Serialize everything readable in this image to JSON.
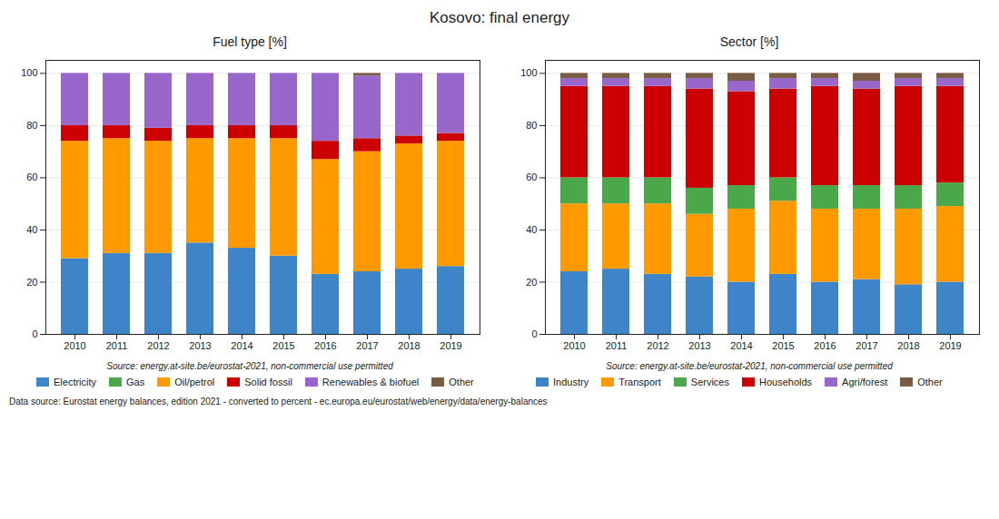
{
  "title": "Kosovo: final energy",
  "annotations": [
    "Data source: Eurostat energy balances, edition 2021 - converted to percent - ec.europa.eu/eurostat/web/energy/data/energy-balances"
  ],
  "chart_data": [
    {
      "type": "bar",
      "title": "Fuel type [%]",
      "stacked": true,
      "grid": true,
      "legend": "bottom",
      "annotations": [
        "Source: energy.at-site.be/eurostat-2021, non-commercial use permitted"
      ],
      "categories": [
        "2010",
        "2011",
        "2012",
        "2013",
        "2014",
        "2015",
        "2016",
        "2017",
        "2018",
        "2019"
      ],
      "ylim": [
        0,
        105
      ],
      "yticks": [
        0,
        20,
        40,
        60,
        80,
        100
      ],
      "series": [
        {
          "name": "Electricity",
          "color": "#3d85c8",
          "values": [
            29,
            31,
            31,
            35,
            33,
            30,
            23,
            24,
            25,
            26
          ]
        },
        {
          "name": "Gas",
          "color": "#4aa84a",
          "values": [
            0,
            0,
            0,
            0,
            0,
            0,
            0,
            0,
            0,
            0
          ]
        },
        {
          "name": "Oil/petrol",
          "color": "#ff9900",
          "values": [
            45,
            44,
            43,
            40,
            42,
            45,
            44,
            46,
            48,
            48
          ]
        },
        {
          "name": "Solid fossil",
          "color": "#cc0000",
          "values": [
            6,
            5,
            5,
            5,
            5,
            5,
            7,
            5,
            3,
            3
          ]
        },
        {
          "name": "Renewables & biofuel",
          "color": "#9966cc",
          "values": [
            20,
            20,
            21,
            20,
            20,
            20,
            26,
            24,
            24,
            23
          ]
        },
        {
          "name": "Other",
          "color": "#7a5c44",
          "values": [
            0,
            0,
            0,
            0,
            0,
            0,
            0,
            1,
            0,
            0
          ]
        }
      ]
    },
    {
      "type": "bar",
      "title": "Sector [%]",
      "stacked": true,
      "grid": true,
      "legend": "bottom",
      "annotations": [
        "Source: energy.at-site.be/eurostat-2021, non-commercial use permitted"
      ],
      "categories": [
        "2010",
        "2011",
        "2012",
        "2013",
        "2014",
        "2015",
        "2016",
        "2017",
        "2018",
        "2019"
      ],
      "ylim": [
        0,
        105
      ],
      "yticks": [
        0,
        20,
        40,
        60,
        80,
        100
      ],
      "series": [
        {
          "name": "Industry",
          "color": "#3d85c8",
          "values": [
            24,
            25,
            23,
            22,
            20,
            23,
            20,
            21,
            19,
            20
          ]
        },
        {
          "name": "Transport",
          "color": "#ff9900",
          "values": [
            26,
            25,
            27,
            24,
            28,
            28,
            28,
            27,
            29,
            29
          ]
        },
        {
          "name": "Services",
          "color": "#4aa84a",
          "values": [
            10,
            10,
            10,
            10,
            9,
            9,
            9,
            9,
            9,
            9
          ]
        },
        {
          "name": "Households",
          "color": "#cc0000",
          "values": [
            35,
            35,
            35,
            38,
            36,
            34,
            38,
            37,
            38,
            37
          ]
        },
        {
          "name": "Agri/forest",
          "color": "#9966cc",
          "values": [
            3,
            3,
            3,
            4,
            4,
            4,
            3,
            3,
            3,
            3
          ]
        },
        {
          "name": "Other",
          "color": "#7a5c44",
          "values": [
            2,
            2,
            2,
            2,
            3,
            2,
            2,
            3,
            2,
            2
          ]
        }
      ]
    }
  ]
}
